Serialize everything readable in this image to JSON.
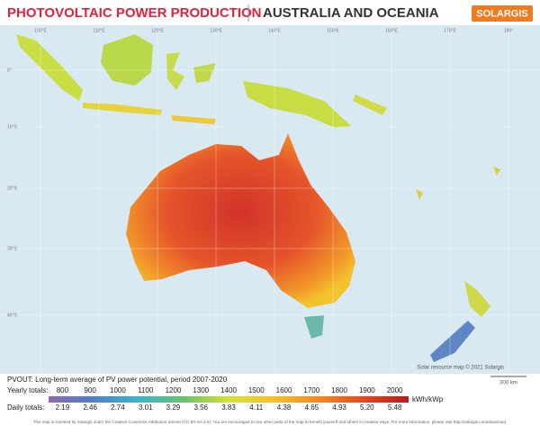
{
  "header": {
    "title": "PHOTOVOLTAIC POWER PRODUCTION",
    "region": "AUSTRALIA AND OCEANIA",
    "logo": "SOLARGIS"
  },
  "map": {
    "longitude_labels": [
      "100°E",
      "110°E",
      "120°E",
      "130°E",
      "140°E",
      "150°E",
      "160°E",
      "170°E",
      "180°"
    ],
    "latitude_labels": [
      "0°",
      "10°S",
      "20°S",
      "30°S",
      "40°S"
    ],
    "credit": "Solar resource map © 2021 Solargis",
    "scale": "300 km"
  },
  "legend": {
    "title": "PVOUT: Long-term average of PV power potential, period 2007-2020",
    "yearly_label": "Yearly totals:",
    "yearly": [
      "800",
      "900",
      "1000",
      "1100",
      "1200",
      "1300",
      "1400",
      "1500",
      "1600",
      "1700",
      "1800",
      "1900",
      "2000"
    ],
    "daily_label": "Daily totals:",
    "daily": [
      "2.19",
      "2.46",
      "2.74",
      "3.01",
      "3.29",
      "3.56",
      "3.83",
      "4.11",
      "4.38",
      "4.65",
      "4.93",
      "5.20",
      "5.48"
    ],
    "unit": "kWh/kWp"
  },
  "footer": "This map is licensed by Solargis under the Creative Commons Attribution license (CC BY-SA 4.0). You are encouraged to use other parts of the map to benefit yourself and others in creative ways. For more information, please visit http://solargis.com/download."
}
